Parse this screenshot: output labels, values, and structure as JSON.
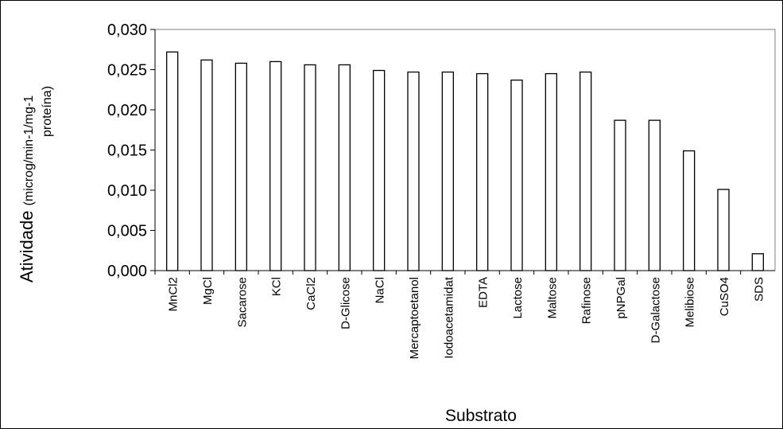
{
  "chart_data": {
    "type": "bar",
    "ylabel": "Atividade",
    "ylabel_units": [
      "(microg/min-1/mg-1",
      "proteína)"
    ],
    "xlabel": "Substrato",
    "categories": [
      "MnCl2",
      "MgCl",
      "Sacarose",
      "KCl",
      "CaCl2",
      "D-Glicose",
      "NaCl",
      "Mercaptoetanol",
      "Iodoacetamidat",
      "EDTA",
      "Lactose",
      "Maltose",
      "Rafinose",
      "pNPGal",
      "D-Galactose",
      "Melibiose",
      "CuSO4",
      "SDS"
    ],
    "values": [
      0.0272,
      0.0262,
      0.0258,
      0.026,
      0.0256,
      0.0256,
      0.0249,
      0.0247,
      0.0247,
      0.0245,
      0.0237,
      0.0245,
      0.0247,
      0.0187,
      0.0187,
      0.0149,
      0.0101,
      0.0021
    ],
    "color": "#ffffff",
    "ylim": [
      0,
      0.03
    ],
    "yticks": [
      {
        "value": 0,
        "label": "0,000"
      },
      {
        "value": 0.005,
        "label": "0,005"
      },
      {
        "value": 0.01,
        "label": "0,010"
      },
      {
        "value": 0.015,
        "label": "0,015"
      },
      {
        "value": 0.02,
        "label": "0,020"
      },
      {
        "value": 0.025,
        "label": "0,025"
      },
      {
        "value": 0.03,
        "label": "0,030"
      }
    ],
    "grid": false
  }
}
